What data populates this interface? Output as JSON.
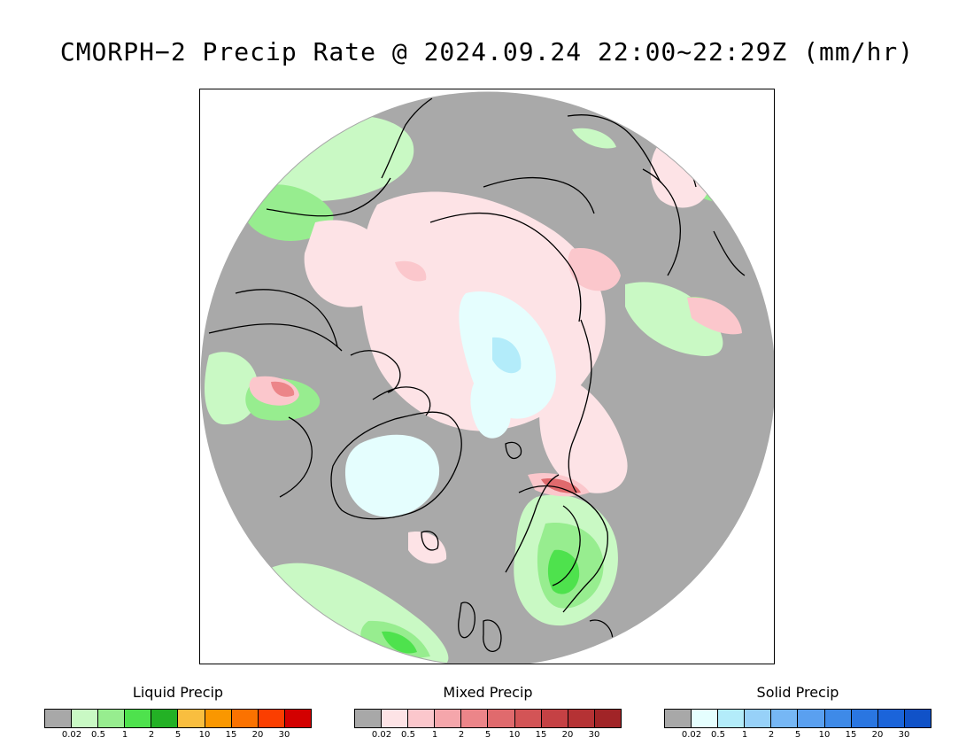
{
  "title": "CMORPH−2 Precip Rate @ 2024.09.24 22:00~22:29Z (mm/hr)",
  "colors": {
    "no_data": "#a9a9a9",
    "frame": "#000000",
    "coast": "#000000"
  },
  "legends": [
    {
      "id": "liquid",
      "title": "Liquid Precip",
      "colors": [
        "#a8a8a8",
        "#c9f9c4",
        "#97ed8f",
        "#4ee24d",
        "#23b125",
        "#f9be3f",
        "#fa9700",
        "#fb7200",
        "#fb3e00",
        "#d30000"
      ],
      "ticks": [
        "0.02",
        "0.5",
        "1",
        "2",
        "5",
        "10",
        "15",
        "20",
        "30"
      ]
    },
    {
      "id": "mixed",
      "title": "Mixed Precip",
      "colors": [
        "#a8a8a8",
        "#fde3e6",
        "#fbc7cc",
        "#f5a6ab",
        "#ec8589",
        "#e06a6d",
        "#d35456",
        "#c54144",
        "#b53234",
        "#a12427"
      ],
      "ticks": [
        "0.02",
        "0.5",
        "1",
        "2",
        "5",
        "10",
        "15",
        "20",
        "30"
      ]
    },
    {
      "id": "solid",
      "title": "Solid Precip",
      "colors": [
        "#a8a8a8",
        "#e5fefe",
        "#b3ecfa",
        "#97d1f8",
        "#76b7f5",
        "#5aa0f0",
        "#3e8ae8",
        "#2a76e1",
        "#1b64da",
        "#1052c8"
      ],
      "ticks": [
        "0.02",
        "0.5",
        "1",
        "2",
        "5",
        "10",
        "15",
        "20",
        "30"
      ]
    }
  ]
}
